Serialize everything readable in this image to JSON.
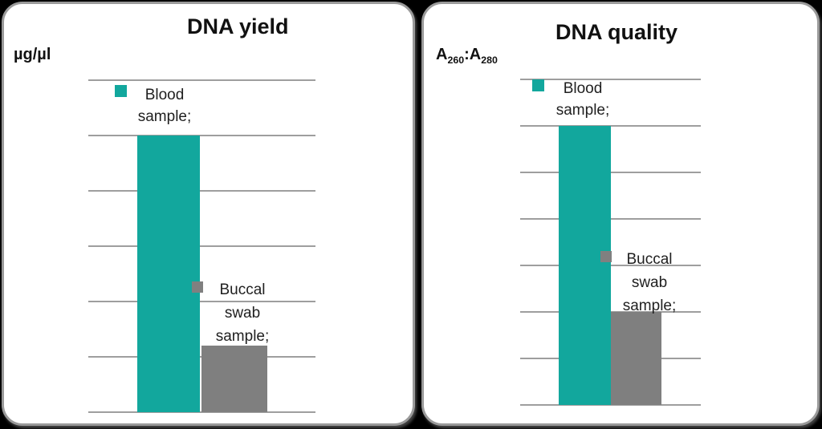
{
  "page": {
    "background": "#000000"
  },
  "colors": {
    "teal": "#12A79D",
    "bar_gray": "#7F7F7F",
    "legend_gray": "#808080",
    "gridline": "#9E9E9E",
    "card_border": "#9A9A9A",
    "card_background": "#FFFFFF",
    "text": "#1F1F1F"
  },
  "charts": [
    {
      "title": "DNA yield",
      "axis_label_parts": [
        {
          "t": "µg/µl"
        }
      ],
      "legend": [
        {
          "name": "blood-sample",
          "lines": [
            "Blood",
            "sample;"
          ]
        },
        {
          "name": "buccal-swab-sample",
          "lines": [
            "Buccal",
            "swab",
            "sample;"
          ]
        }
      ]
    },
    {
      "title": "DNA quality",
      "axis_label_parts": [
        {
          "t": "A"
        },
        {
          "t": "260",
          "sub": true
        },
        {
          "t": ":A"
        },
        {
          "t": "280",
          "sub": true
        }
      ],
      "legend": [
        {
          "name": "blood-sample",
          "lines": [
            "Blood",
            "sample;"
          ]
        },
        {
          "name": "buccal-swab-sample",
          "lines": [
            "Buccal",
            "swab",
            "sample;"
          ]
        }
      ]
    }
  ],
  "chart_data": [
    {
      "type": "bar",
      "title": "DNA yield",
      "ylabel": "µg/µl",
      "categories": [
        "Blood sample",
        "Buccal swab sample"
      ],
      "values": [
        5.0,
        1.2
      ],
      "series_colors": [
        "#12A79D",
        "#7F7F7F"
      ],
      "ylim": [
        0,
        6
      ],
      "gridline_count": 7,
      "y_tick_labels": [],
      "x_tick_labels": [],
      "grid": true,
      "legend_position": "inside-plot",
      "scale_note": "axis has unlabeled gridlines; values expressed in gridline intervals above baseline"
    },
    {
      "type": "bar",
      "title": "DNA quality",
      "ylabel": "A260:A280",
      "categories": [
        "Blood sample",
        "Buccal swab sample"
      ],
      "values": [
        6.0,
        2.0
      ],
      "series_colors": [
        "#12A79D",
        "#7F7F7F"
      ],
      "ylim": [
        0,
        7
      ],
      "gridline_count": 8,
      "y_tick_labels": [],
      "x_tick_labels": [],
      "grid": true,
      "legend_position": "inside-plot",
      "scale_note": "axis has unlabeled gridlines; values expressed in gridline intervals above baseline"
    }
  ]
}
